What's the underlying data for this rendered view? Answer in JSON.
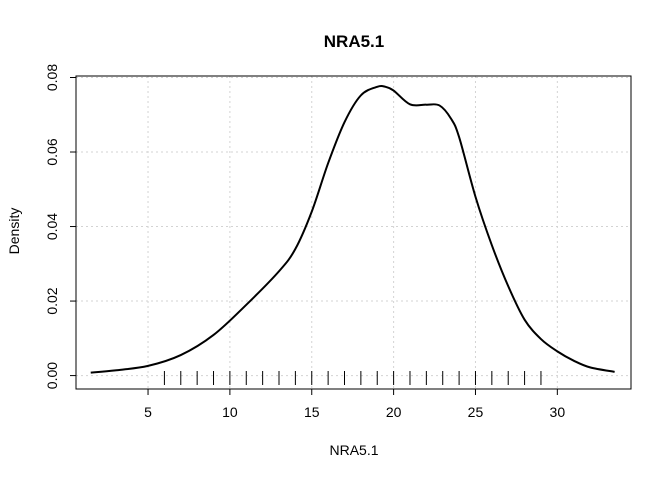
{
  "chart_data": {
    "type": "line",
    "title": "NRA5.1",
    "xlabel": "NRA5.1",
    "ylabel": "Density",
    "xlim": [
      0.6,
      34.5
    ],
    "ylim": [
      -0.0036,
      0.0804
    ],
    "x_ticks": [
      5,
      10,
      15,
      20,
      25,
      30
    ],
    "y_ticks": [
      0.0,
      0.02,
      0.04,
      0.06,
      0.08
    ],
    "x_tick_labels": [
      "5",
      "10",
      "15",
      "20",
      "25",
      "30"
    ],
    "y_tick_labels": [
      "0.00",
      "0.02",
      "0.04",
      "0.06",
      "0.08"
    ],
    "grid": true,
    "rug": [
      6,
      7,
      8,
      9,
      10,
      11,
      12,
      13,
      14,
      15,
      16,
      17,
      18,
      19,
      20,
      21,
      22,
      23,
      24,
      25,
      26,
      27,
      28,
      29
    ],
    "series": [
      {
        "x": [
          1.5,
          3.0,
          5.0,
          7.0,
          9.0,
          11.0,
          13.0,
          14.0,
          15.0,
          16.0,
          17.0,
          18.0,
          19.0,
          19.5,
          20.0,
          21.0,
          22.0,
          22.8,
          23.5,
          24.0,
          25.0,
          26.0,
          27.0,
          28.0,
          29.0,
          30.0,
          31.0,
          32.0,
          33.5
        ],
        "y": [
          0.0008,
          0.0014,
          0.0026,
          0.0055,
          0.0109,
          0.019,
          0.028,
          0.034,
          0.044,
          0.057,
          0.068,
          0.0752,
          0.0775,
          0.0775,
          0.0765,
          0.0728,
          0.0727,
          0.0725,
          0.069,
          0.064,
          0.048,
          0.035,
          0.024,
          0.015,
          0.0098,
          0.0065,
          0.004,
          0.0022,
          0.001
        ],
        "color": "#000000"
      }
    ]
  }
}
